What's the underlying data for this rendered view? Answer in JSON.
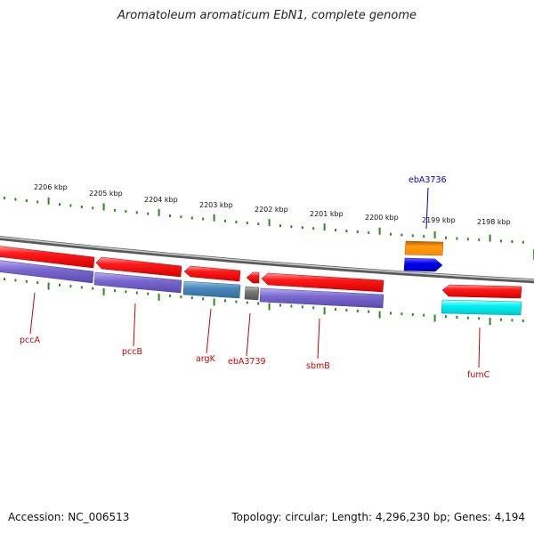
{
  "title": "Aromatoleum aromaticum EbN1, complete genome",
  "footer": {
    "accession": "Accession: NC_006513",
    "topology": "Topology: circular; Length: 4,296,230 bp; Genes: 4,194"
  },
  "scale": {
    "labels": [
      "2206 kbp",
      "2205 kbp",
      "2204 kbp",
      "2203 kbp",
      "2202 kbp",
      "2201 kbp",
      "2200 kbp",
      "2199 kbp",
      "2198 kbp"
    ]
  },
  "genes": [
    {
      "name": "pccA",
      "strand": "-"
    },
    {
      "name": "pccB",
      "strand": "-"
    },
    {
      "name": "argK",
      "strand": "-"
    },
    {
      "name": "ebA3739",
      "strand": "-"
    },
    {
      "name": "sbmB",
      "strand": "-"
    },
    {
      "name": "ebA3736",
      "strand": "+"
    },
    {
      "name": "fumC",
      "strand": "-"
    }
  ],
  "colors": {
    "cds": "#ff0000",
    "backbone": "#8a8a8a",
    "ticks": "#2a8a1a",
    "label_red": "#cc0000",
    "label_blue": "#0000cc",
    "purple": "#7a6ad0",
    "steelblue": "#4a88bb",
    "gray": "#777777",
    "orange": "#ff8c00",
    "blue": "#0000ee",
    "cyan": "#00f0f0"
  }
}
